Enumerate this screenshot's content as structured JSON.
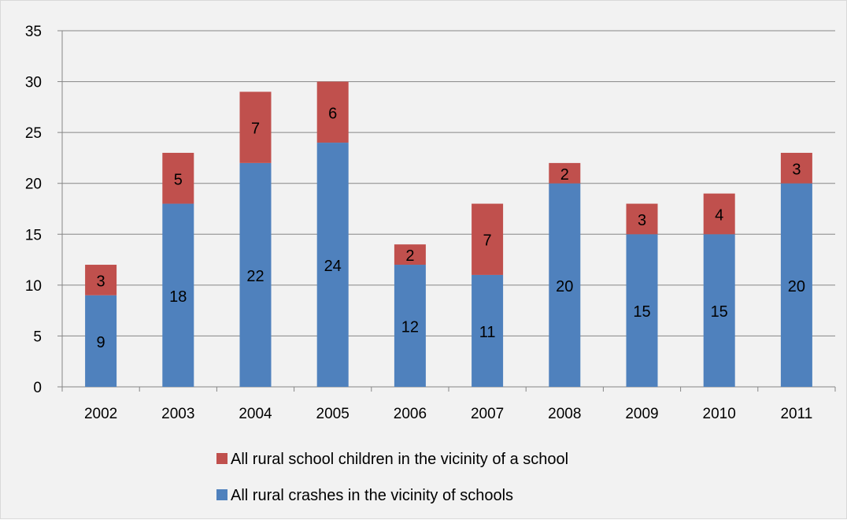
{
  "chart_data": {
    "type": "bar",
    "stacked": true,
    "categories": [
      "2002",
      "2003",
      "2004",
      "2005",
      "2006",
      "2007",
      "2008",
      "2009",
      "2010",
      "2011"
    ],
    "series": [
      {
        "name": "All rural crashes in the vicinity of schools",
        "color": "#4f81bd",
        "values": [
          9,
          18,
          22,
          24,
          12,
          11,
          20,
          15,
          15,
          20
        ]
      },
      {
        "name": "All rural school children in the vicinity of a school",
        "color": "#c0504d",
        "values": [
          3,
          5,
          7,
          6,
          2,
          7,
          2,
          3,
          4,
          3
        ]
      }
    ],
    "ylim": [
      0,
      35
    ],
    "yticks": [
      "0",
      "5",
      "10",
      "15",
      "20",
      "25",
      "30",
      "35"
    ],
    "grid": true,
    "legend_position": "bottom",
    "legend": [
      {
        "label": "All rural school children in the vicinity of a school",
        "color": "#c0504d"
      },
      {
        "label": "All rural crashes in the vicinity of schools",
        "color": "#4f81bd"
      }
    ]
  }
}
